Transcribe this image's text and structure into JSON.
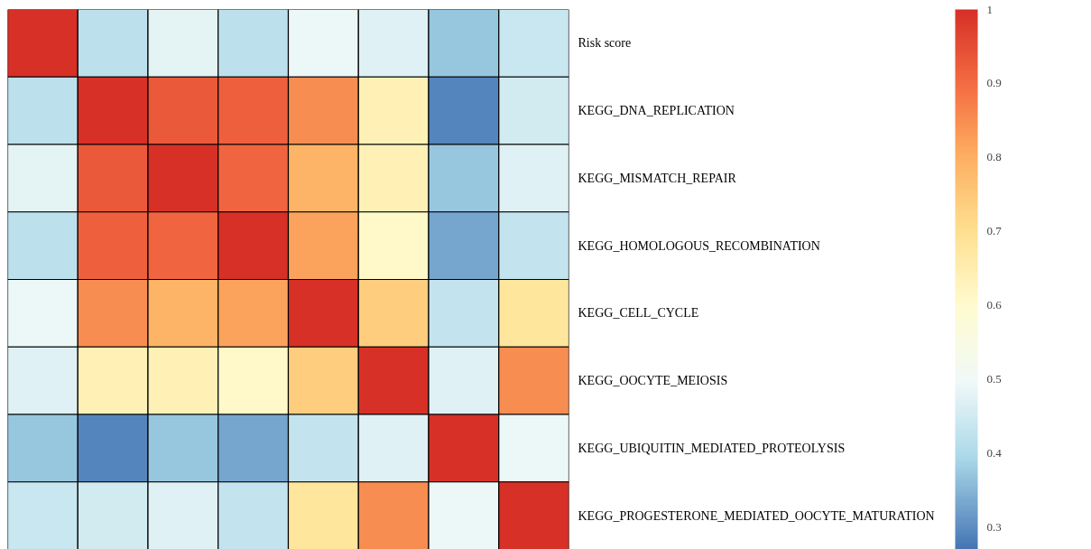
{
  "chart_data": {
    "type": "heatmap",
    "categories": [
      null,
      null,
      null,
      null,
      null,
      null,
      null,
      null
    ],
    "y_categories": [
      "Risk score",
      "KEGG_DNA_REPLICATION",
      "KEGG_MISMATCH_REPAIR",
      "KEGG_HOMOLOGOUS_RECOMBINATION",
      "KEGG_CELL_CYCLE",
      "KEGG_OOCYTE_MEIOSIS",
      "KEGG_UBIQUITIN_MEDIATED_PROTEOLYSIS",
      "KEGG_PROGESTERONE_MEDIATED_OOCYTE_MATURATION"
    ],
    "cells": [
      [
        1,
        0.42,
        0.48,
        0.42,
        0.49,
        0.47,
        0.37,
        0.44
      ],
      [
        0.42,
        1,
        0.93,
        0.92,
        0.85,
        0.64,
        0.29,
        0.45
      ],
      [
        0.48,
        0.93,
        1,
        0.91,
        0.79,
        0.64,
        0.37,
        0.47
      ],
      [
        0.42,
        0.92,
        0.91,
        1,
        0.82,
        0.61,
        0.33,
        0.43
      ],
      [
        0.49,
        0.85,
        0.79,
        0.82,
        1,
        0.74,
        0.43,
        0.68
      ],
      [
        0.47,
        0.64,
        0.64,
        0.61,
        0.74,
        1,
        0.47,
        0.85
      ],
      [
        0.37,
        0.29,
        0.37,
        0.33,
        0.43,
        0.47,
        1,
        0.49
      ],
      [
        0.44,
        0.45,
        0.47,
        0.43,
        0.68,
        0.85,
        0.49,
        1
      ]
    ],
    "clim": [
      0.27,
      1
    ],
    "cticks": [
      0.3,
      0.4,
      0.5,
      0.6,
      0.7,
      0.8,
      0.9,
      1
    ]
  }
}
